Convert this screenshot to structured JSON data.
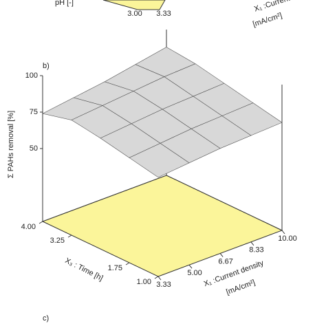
{
  "top_fragment": {
    "labels": [
      "pH [-]",
      "3.00",
      "3.33",
      "X₁ :Current",
      "[mA/cm²]"
    ]
  },
  "chart_data": {
    "type": "surface",
    "panel_label": "b)",
    "next_panel_label": "c)",
    "zlabel": "Σ PAHs removal [%]",
    "xlabel": [
      "X₁ :Current density",
      "[mA/cm²]"
    ],
    "ylabel": "X₃ : Time [h]",
    "x": [
      3.33,
      5,
      6.67,
      8.33,
      10
    ],
    "y": [
      1,
      1.75,
      2.5,
      3.25,
      4
    ],
    "z": [
      [
        68,
        70,
        72,
        73,
        74
      ],
      [
        72,
        74,
        76,
        77,
        78
      ],
      [
        76,
        78,
        80,
        81,
        82
      ],
      [
        79,
        81,
        83,
        85,
        86
      ],
      [
        74,
        77,
        80,
        84,
        88
      ]
    ],
    "xlim": [
      3.33,
      10
    ],
    "ylim": [
      1,
      4
    ],
    "zlim": [
      0,
      100
    ],
    "xticks": [
      3.33,
      {
        "value": 5,
        "label": "5.00"
      },
      6.67,
      8.33,
      {
        "value": 10,
        "label": "10.00"
      }
    ],
    "yticks": [
      {
        "value": 1,
        "label": "1.00"
      },
      1.75,
      3.25,
      {
        "value": 4,
        "label": "4.00"
      }
    ],
    "zticks": [
      50,
      75,
      100
    ],
    "surface_color": "#d8d8d8",
    "floor_color": "#fbf59a"
  }
}
